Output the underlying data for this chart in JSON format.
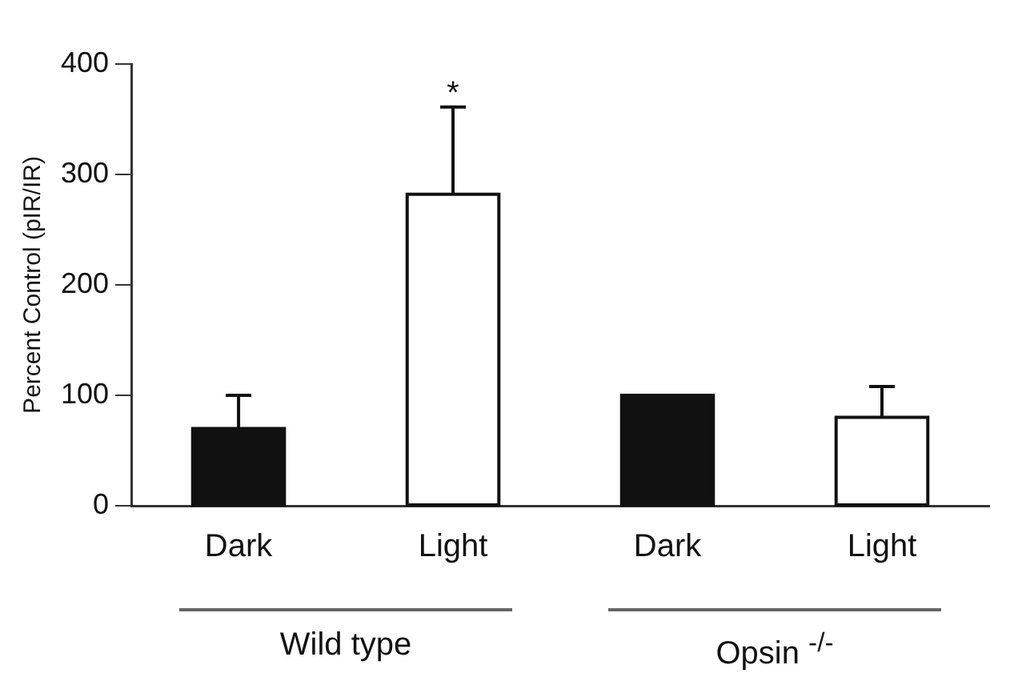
{
  "chart_data": {
    "type": "bar",
    "ylabel": "Percent Control (pIR/IR)",
    "categories": [
      "Dark",
      "Light",
      "Dark",
      "Light"
    ],
    "values": [
      70,
      282,
      100,
      80
    ],
    "colors": [
      "#111111",
      "#ffffff",
      "#111111",
      "#ffffff"
    ],
    "errors": [
      [
        70,
        100
      ],
      [
        282,
        361
      ],
      null,
      [
        80,
        108
      ]
    ],
    "ylim": [
      0,
      400
    ],
    "yticks": [
      0,
      100,
      200,
      300,
      400
    ],
    "grid": false,
    "legend": false,
    "annotations": [
      {
        "text": "*",
        "x": "Light",
        "y": 361
      },
      "Wild type",
      "Opsin $^{-/-}$"
    ]
  }
}
